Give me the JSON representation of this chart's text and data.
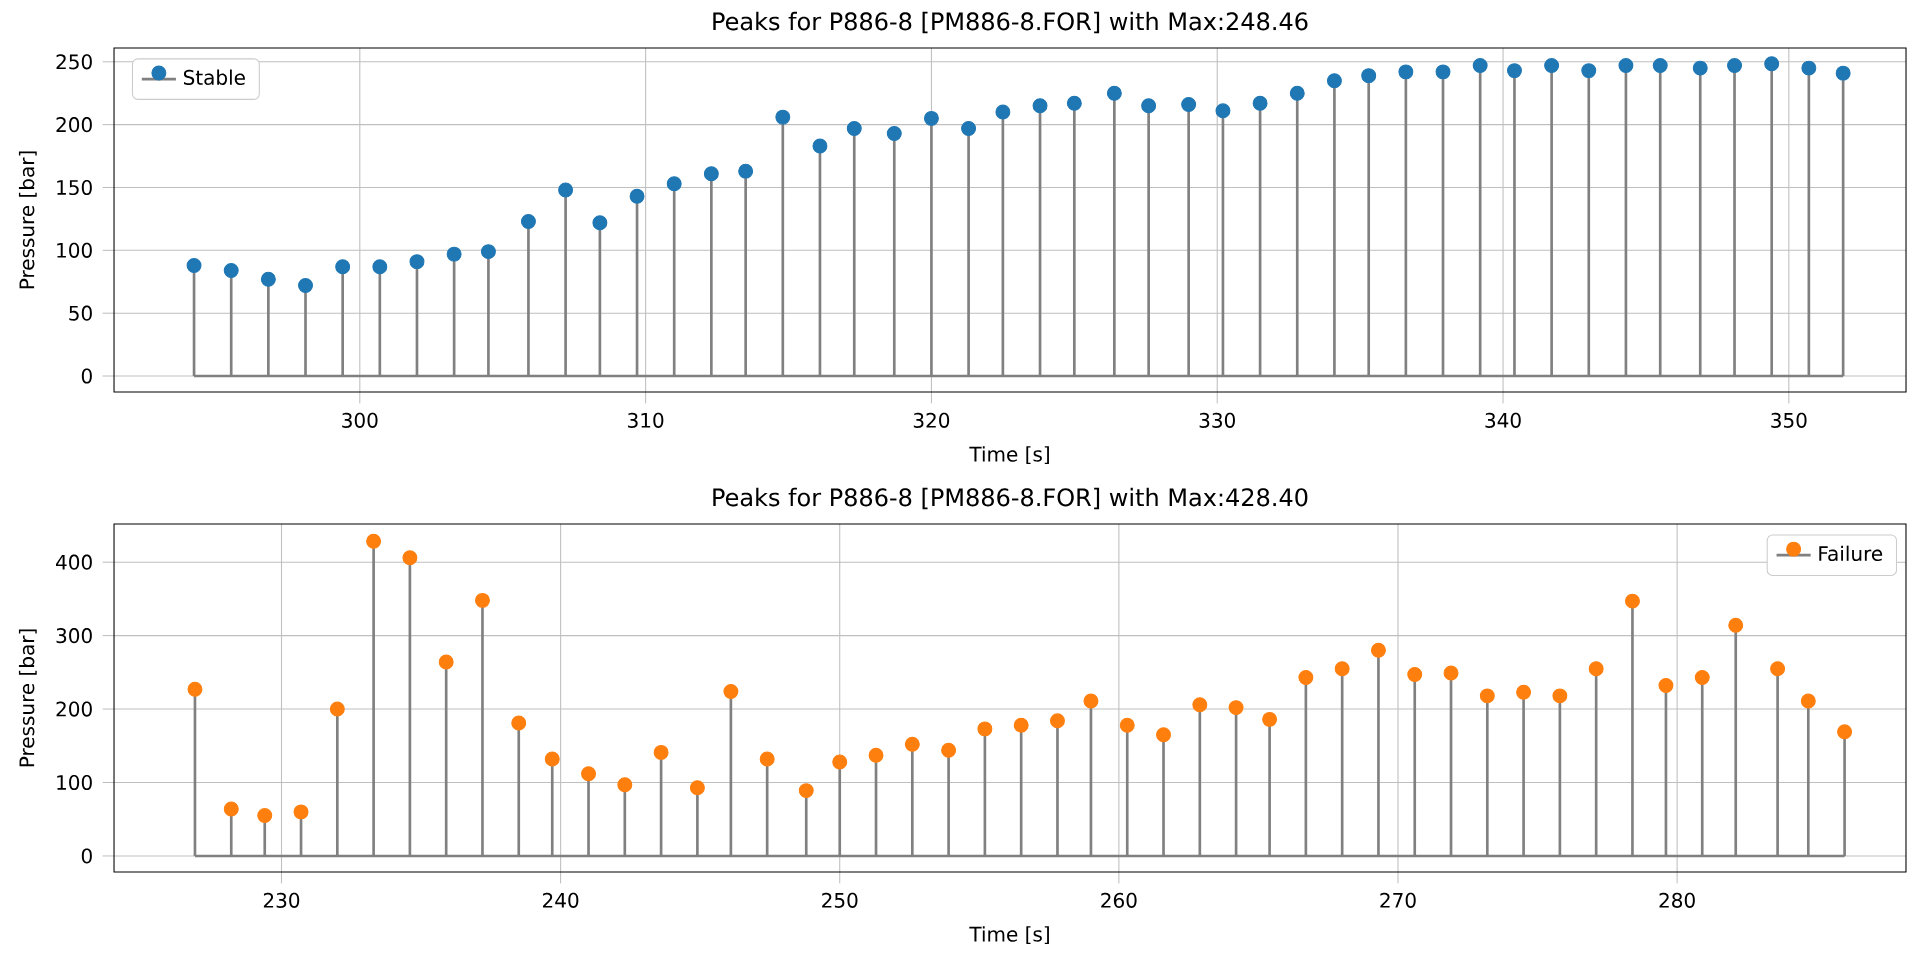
{
  "chart_data": [
    {
      "type": "lollipop",
      "title": "Peaks for P886-8 [PM886-8.FOR] with Max:248.46",
      "xlabel": "Time [s]",
      "ylabel": "Pressure [bar]",
      "xlim": [
        291.4,
        354.1
      ],
      "ylim": [
        -12.7,
        261
      ],
      "xticks": [
        300,
        310,
        320,
        330,
        340,
        350
      ],
      "yticks": [
        0,
        50,
        100,
        150,
        200,
        250
      ],
      "grid": true,
      "legend": "top left",
      "marker": "circle",
      "series": [
        {
          "name": "Stable",
          "color": "#1f77b4",
          "x": [
            294.2,
            295.5,
            296.8,
            298.1,
            299.4,
            300.7,
            302.0,
            303.3,
            304.5,
            305.9,
            307.2,
            308.4,
            309.7,
            311.0,
            312.3,
            313.5,
            314.8,
            316.1,
            317.3,
            318.7,
            320.0,
            321.3,
            322.5,
            323.8,
            325.0,
            326.4,
            327.6,
            329.0,
            330.2,
            331.5,
            332.8,
            334.1,
            335.3,
            336.6,
            337.9,
            339.2,
            340.4,
            341.7,
            343.0,
            344.3,
            345.5,
            346.9,
            348.1,
            349.4,
            350.7,
            351.9
          ],
          "values": [
            88,
            84,
            77,
            72,
            87,
            87,
            91,
            97,
            99,
            123,
            148,
            122,
            143,
            153,
            161,
            163,
            206,
            183,
            197,
            193,
            205,
            197,
            210,
            215,
            217,
            225,
            215,
            216,
            211,
            217,
            225,
            235,
            239,
            242,
            242,
            247,
            243,
            247,
            243,
            247,
            247,
            245,
            247,
            248.46,
            245,
            241
          ]
        }
      ]
    },
    {
      "type": "lollipop",
      "title": "Peaks for P886-8 [PM886-8.FOR] with Max:428.40",
      "xlabel": "Time [s]",
      "ylabel": "Pressure [bar]",
      "xlim": [
        224.0,
        288.2
      ],
      "ylim": [
        -21.8,
        452
      ],
      "xticks": [
        230,
        240,
        250,
        260,
        270,
        280
      ],
      "yticks": [
        0,
        100,
        200,
        300,
        400
      ],
      "grid": true,
      "legend": "top right",
      "marker": "circle",
      "series": [
        {
          "name": "Failure",
          "color": "#ff7f0e",
          "x": [
            226.9,
            228.2,
            229.4,
            230.7,
            232.0,
            233.3,
            234.6,
            235.9,
            237.2,
            238.5,
            239.7,
            241.0,
            242.3,
            243.6,
            244.9,
            246.1,
            247.4,
            248.8,
            250.0,
            251.3,
            252.6,
            253.9,
            255.2,
            256.5,
            257.8,
            259.0,
            260.3,
            261.6,
            262.9,
            264.2,
            265.4,
            266.7,
            268.0,
            269.3,
            270.6,
            271.9,
            273.2,
            274.5,
            275.8,
            277.1,
            278.4,
            279.6,
            280.9,
            282.1,
            283.6,
            284.7,
            286.0
          ],
          "values": [
            227,
            64,
            55,
            60,
            200,
            428.4,
            406,
            264,
            348,
            181,
            132,
            112,
            97,
            141,
            93,
            224,
            132,
            89,
            128,
            137,
            152,
            144,
            173,
            178,
            184,
            211,
            178,
            165,
            206,
            202,
            186,
            243,
            255,
            280,
            247,
            249,
            218,
            223,
            218,
            255,
            347,
            232,
            243,
            314,
            255,
            211,
            169
          ]
        }
      ]
    }
  ]
}
